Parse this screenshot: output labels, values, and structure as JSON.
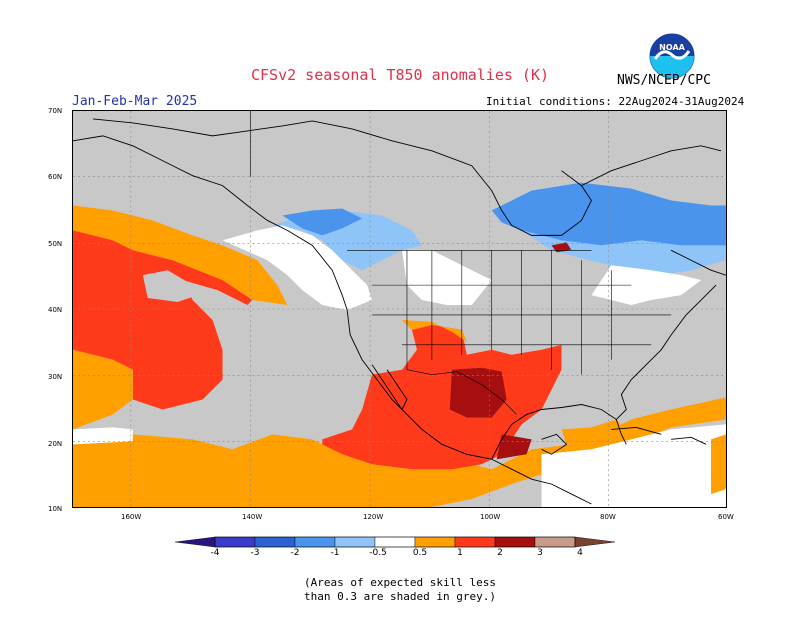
{
  "header": {
    "title": "CFSv2 seasonal T850 anomalies (K)",
    "agency": "NWS/NCEP/CPC",
    "season": "Jan-Feb-Mar 2025",
    "initial_conditions": "Initial conditions: 22Aug2024-31Aug2024",
    "logo_text": "NOAA"
  },
  "axes": {
    "lat_labels": [
      "70N",
      "60N",
      "50N",
      "40N",
      "30N",
      "20N",
      "10N"
    ],
    "lon_labels": [
      "160W",
      "140W",
      "120W",
      "100W",
      "80W",
      "60W"
    ]
  },
  "legend": {
    "labels": [
      "-4",
      "-3",
      "-2",
      "-1",
      "-0.5",
      "0.5",
      "1",
      "2",
      "3",
      "4"
    ],
    "colors": {
      "lt_-4": "#2a1480",
      "-4_-3": "#3a3acc",
      "-3_-2": "#2a62d6",
      "-2_-1": "#4a94ee",
      "-1_-0.5": "#8ec4f8",
      "-0.5_0.5": "#ffffff",
      "0.5_1": "#ffa000",
      "1_2": "#ff3a1a",
      "2_3": "#a50f0f",
      "3_4": "#c89a8a",
      "gt_4": "#7a4030"
    }
  },
  "colors": {
    "skill_mask": "#c8c8c8"
  },
  "note": {
    "line1": "(Areas of expected skill less",
    "line2": "than 0.3 are shaded in grey.)"
  }
}
